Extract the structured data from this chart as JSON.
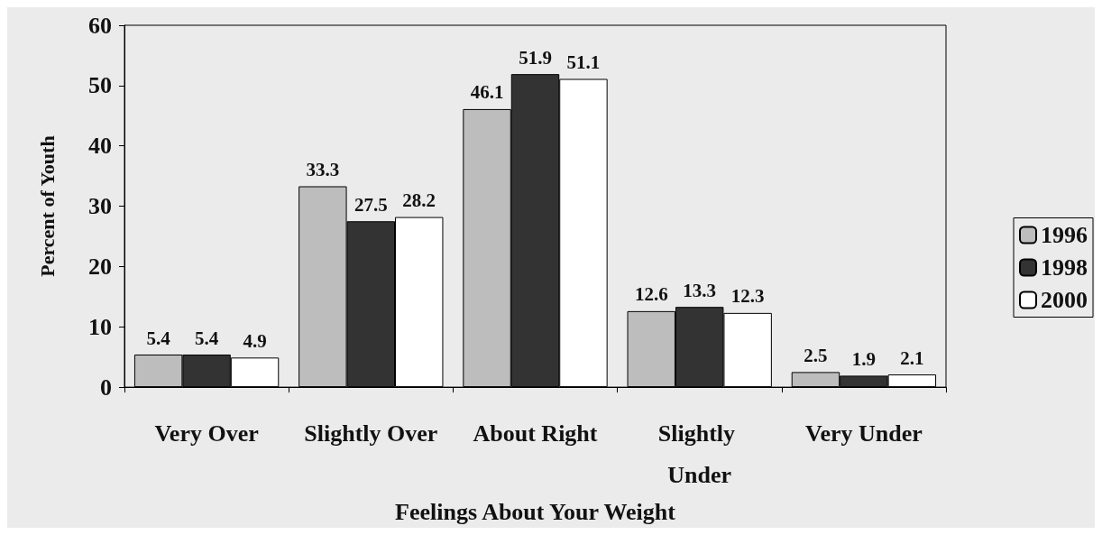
{
  "chart_data": {
    "type": "bar",
    "xlabel": "Feelings About Your Weight",
    "ylabel": "Percent of Youth",
    "categories": [
      "Very Over",
      "Slightly Over",
      "About Right",
      "Slightly Under",
      "Very Under"
    ],
    "series": [
      {
        "name": "1996",
        "color": "#bdbdbd",
        "values": [
          5.4,
          33.3,
          46.1,
          12.6,
          2.5
        ]
      },
      {
        "name": "1998",
        "color": "#333333",
        "values": [
          5.4,
          27.5,
          51.9,
          13.3,
          1.9
        ]
      },
      {
        "name": "2000",
        "color": "#ffffff",
        "values": [
          4.9,
          28.2,
          51.1,
          12.3,
          2.1
        ]
      }
    ],
    "ylim": [
      0,
      60
    ],
    "yticks": [
      0,
      10,
      20,
      30,
      40,
      50,
      60
    ],
    "grid": false,
    "legend": "right",
    "data_labels": true
  }
}
